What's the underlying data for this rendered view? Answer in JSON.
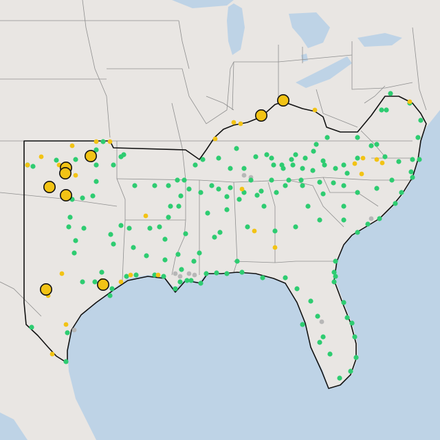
{
  "colors": {
    "water": "#bed3e6",
    "land": "#e9e6e3",
    "state_border": "#8e8e8e",
    "region_outline": "#111111",
    "site_green": "#2ecc71",
    "site_yellow": "#f2c315",
    "site_gray": "#b7b7b7"
  },
  "layers": {
    "large_sites": [
      {
        "lon": -87.6,
        "lat": 38.2
      },
      {
        "lon": -88.3,
        "lat": 37.7
      },
      {
        "lon": -98.8,
        "lat": 36.8
      },
      {
        "lon": -100.2,
        "lat": 36.4
      },
      {
        "lon": -100.3,
        "lat": 36.2
      },
      {
        "lon": -100.7,
        "lat": 35.7
      },
      {
        "lon": -100.1,
        "lat": 35.5
      },
      {
        "lon": -100.7,
        "lat": 31.6
      },
      {
        "lon": -97.7,
        "lat": 31.8
      }
    ]
  }
}
